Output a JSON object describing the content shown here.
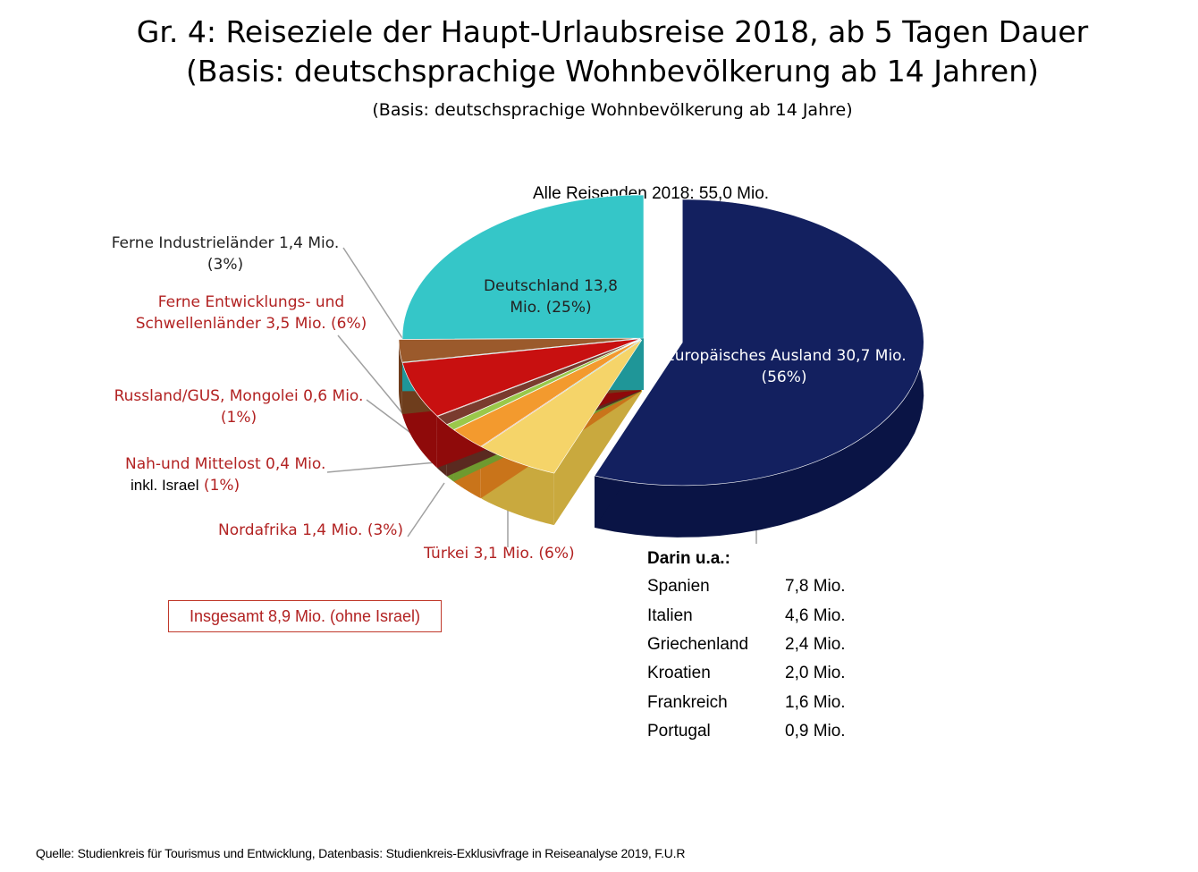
{
  "title_line1": "Gr. 4: Reiseziele der Haupt-Urlaubsreise 2018, ab 5 Tagen Dauer",
  "title_line2": "(Basis: deutschsprachige Wohnbevölkerung ab 14 Jahren)",
  "subtitle": "(Basis: deutschsprachige Wohnbevölkerung ab 14 Jahre)",
  "total_line": "Alle Reisenden 2018: 55,0 Mio.",
  "chart_data": {
    "type": "pie",
    "unit": "Mio.",
    "total": 55.0,
    "slices": [
      {
        "label": "Europäisches Ausland",
        "value": 30.7,
        "percent": 56,
        "color": "#13205f",
        "side": "#0a1445"
      },
      {
        "label": "Türkei",
        "value": 3.1,
        "percent": 6,
        "color": "#f5d469",
        "side": "#c9a93e"
      },
      {
        "label": "Nordafrika",
        "value": 1.4,
        "percent": 3,
        "color": "#f39a2e",
        "side": "#c9741a"
      },
      {
        "label": "Nah-und Mittelost inkl. Israel",
        "value": 0.4,
        "percent": 1,
        "color": "#9ac84a",
        "side": "#6f9a2f"
      },
      {
        "label": "Russland/GUS, Mongolei",
        "value": 0.6,
        "percent": 1,
        "color": "#7a3b2e",
        "side": "#5a2a20"
      },
      {
        "label": "Ferne Entwicklungs- und Schwellenländer",
        "value": 3.5,
        "percent": 6,
        "color": "#c81010",
        "side": "#8f0a0a"
      },
      {
        "label": "Ferne Industrieländer",
        "value": 1.4,
        "percent": 3,
        "color": "#9b5a2c",
        "side": "#6e3d1c"
      },
      {
        "label": "Deutschland",
        "value": 13.8,
        "percent": 25,
        "color": "#35c6c8",
        "side": "#1f9698"
      }
    ]
  },
  "labels": {
    "europa_line1": "Europäisches Ausland 30,7 Mio.",
    "europa_line2": "(56%)",
    "deutschland_line1": "Deutschland 13,8",
    "deutschland_line2": "Mio. (25%)",
    "ind_line1": "Ferne Industrieländer 1,4 Mio.",
    "ind_line2": "(3%)",
    "entw_line1": "Ferne Entwicklungs- und",
    "entw_line2": "Schwellenländer 3,5 Mio. (6%)",
    "russ_line1": "Russland/GUS, Mongolei 0,6 Mio.",
    "russ_line2": "(1%)",
    "nah_line1": "Nah-und Mittelost 0,4 Mio.",
    "nah_line2a": "inkl.  Israel",
    "nah_line2b": " (1%)",
    "nordafrika": "Nordafrika 1,4 Mio. (3%)",
    "tuerkei": "Türkei 3,1 Mio. (6%)"
  },
  "detail": {
    "heading": "Darin u.a.:",
    "rows": [
      {
        "country": "Spanien",
        "value": "7,8 Mio."
      },
      {
        "country": "Italien",
        "value": "4,6 Mio."
      },
      {
        "country": "Griechenland",
        "value": "2,4 Mio."
      },
      {
        "country": "Kroatien",
        "value": "2,0 Mio."
      },
      {
        "country": "Frankreich",
        "value": "1,6 Mio."
      },
      {
        "country": "Portugal",
        "value": "0,9 Mio."
      }
    ]
  },
  "box_note": "Insgesamt 8,9 Mio. (ohne Israel)",
  "source": "Quelle: Studienkreis für Tourismus und Entwicklung, Datenbasis: Studienkreis-Exklusivfrage in Reiseanalyse 2019, F.U.R"
}
